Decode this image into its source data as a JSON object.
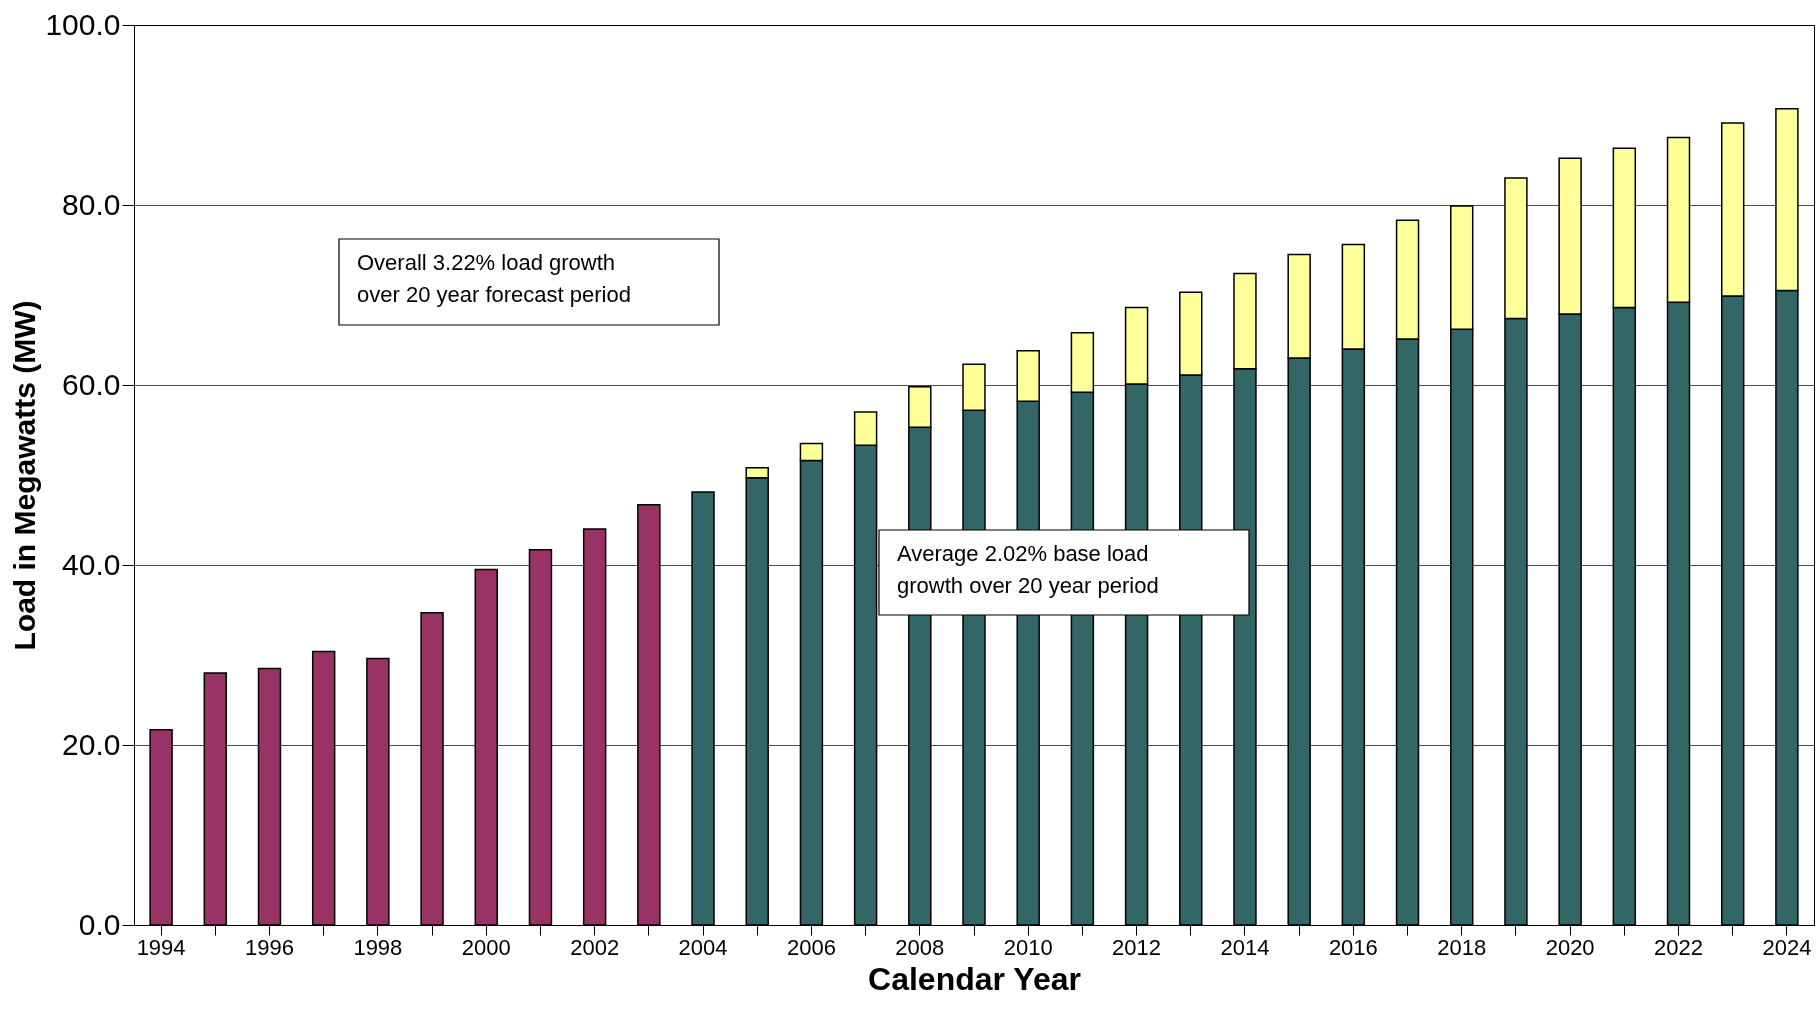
{
  "chart_data": {
    "type": "bar",
    "stacked": true,
    "xlabel": "Calendar Year",
    "ylabel": "Load in Megawatts (MW)",
    "categories": [
      "1994",
      null,
      "1996",
      null,
      "1998",
      null,
      "2000",
      null,
      "2002",
      null,
      "2004",
      null,
      "2006",
      null,
      "2008",
      null,
      "2010",
      null,
      "2012",
      null,
      "2014",
      null,
      "2016",
      null,
      "2018",
      null,
      "2020",
      null,
      "2022",
      null,
      "2024"
    ],
    "series": [
      {
        "color": "#993366",
        "values": [
          21.7,
          28.0,
          28.5,
          30.4,
          29.6,
          34.7,
          39.5,
          41.7,
          44.0,
          46.7,
          null,
          null,
          null,
          null,
          null,
          null,
          null,
          null,
          null,
          null,
          null,
          null,
          null,
          null,
          null,
          null,
          null,
          null,
          null,
          null,
          null
        ]
      },
      {
        "color": "#336666",
        "values": [
          null,
          null,
          null,
          null,
          null,
          null,
          null,
          null,
          null,
          null,
          48.1,
          49.7,
          51.6,
          53.3,
          55.3,
          57.2,
          58.2,
          59.2,
          60.1,
          61.1,
          61.8,
          63.0,
          64.0,
          65.1,
          66.2,
          67.4,
          67.9,
          68.6,
          69.2,
          69.9,
          70.5
        ]
      },
      {
        "color": "#ffff99",
        "values": [
          null,
          null,
          null,
          null,
          null,
          null,
          null,
          null,
          null,
          null,
          null,
          1.1,
          1.9,
          3.7,
          4.5,
          5.1,
          5.6,
          6.6,
          8.5,
          9.2,
          10.6,
          11.5,
          11.6,
          13.2,
          13.7,
          15.6,
          17.3,
          17.7,
          18.3,
          19.2,
          20.2
        ]
      }
    ],
    "ylim": [
      0,
      100
    ],
    "yticks": [
      {
        "value": 0,
        "label": "0.0"
      },
      {
        "value": 20,
        "label": "20.0"
      },
      {
        "value": 40,
        "label": "40.0"
      },
      {
        "value": 60,
        "label": "60.0"
      },
      {
        "value": 80,
        "label": "80.0"
      },
      {
        "value": 100,
        "label": "100.0"
      }
    ],
    "grid": "y",
    "annotations": [
      "Overall 3.22% load growth\nover 20 year forecast period",
      "Average 2.02% base load\ngrowth over 20 year period"
    ]
  }
}
